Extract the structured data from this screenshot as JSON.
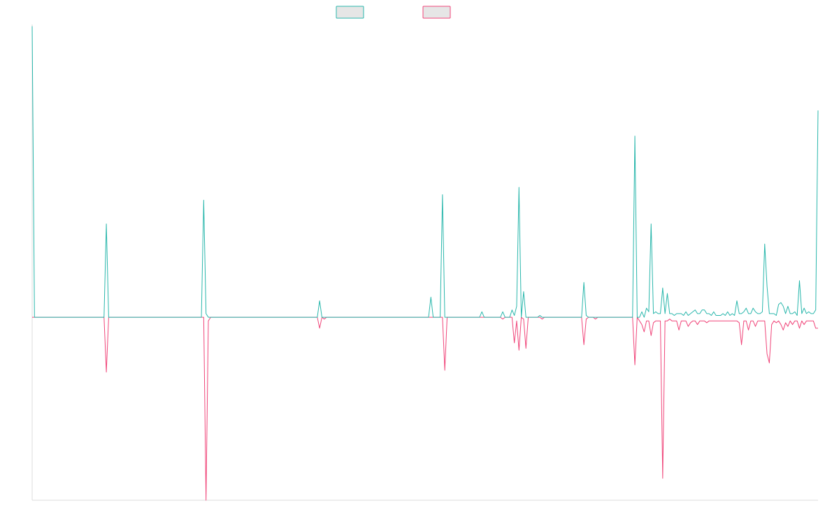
{
  "chart_data": {
    "type": "line",
    "title": "",
    "xlabel": "",
    "ylabel": "",
    "ylim": [
      -1.0,
      1.6
    ],
    "grid": false,
    "legend_position": "top",
    "colors": {
      "series1": "#2ab7ac",
      "series2": "#f0467a",
      "legend_fill": "#e6e6e6",
      "axis": "#dddddd"
    },
    "series": [
      {
        "name": "",
        "values": [
          1.59,
          0,
          0,
          0,
          0,
          0,
          0,
          0,
          0,
          0,
          0,
          0,
          0,
          0,
          0,
          0,
          0,
          0,
          0,
          0,
          0,
          0,
          0,
          0,
          0,
          0,
          0,
          0,
          0,
          0,
          0,
          0,
          0.51,
          0,
          0,
          0,
          0,
          0,
          0,
          0,
          0,
          0,
          0,
          0,
          0,
          0,
          0,
          0,
          0,
          0,
          0,
          0,
          0,
          0,
          0,
          0,
          0,
          0,
          0,
          0,
          0,
          0,
          0,
          0,
          0,
          0,
          0,
          0,
          0,
          0,
          0,
          0,
          0,
          0,
          0.64,
          0.02,
          0,
          0,
          0,
          0,
          0,
          0,
          0,
          0,
          0,
          0,
          0,
          0,
          0,
          0,
          0,
          0,
          0,
          0,
          0,
          0,
          0,
          0,
          0,
          0,
          0,
          0,
          0,
          0,
          0,
          0,
          0,
          0,
          0,
          0,
          0,
          0,
          0,
          0,
          0,
          0,
          0,
          0,
          0,
          0,
          0,
          0,
          0,
          0,
          0.09,
          0,
          0,
          0,
          0,
          0,
          0,
          0,
          0,
          0,
          0,
          0,
          0,
          0,
          0,
          0,
          0,
          0,
          0,
          0,
          0,
          0,
          0,
          0,
          0,
          0,
          0,
          0,
          0,
          0,
          0,
          0,
          0,
          0,
          0,
          0,
          0,
          0,
          0,
          0,
          0,
          0,
          0,
          0,
          0,
          0,
          0,
          0,
          0.11,
          0,
          0,
          0,
          0,
          0.67,
          0,
          0,
          0,
          0,
          0,
          0,
          0,
          0,
          0,
          0,
          0,
          0,
          0,
          0,
          0,
          0,
          0.03,
          0,
          0,
          0,
          0,
          0,
          0,
          0,
          0,
          0.03,
          0,
          0,
          0,
          0.04,
          0.01,
          0.06,
          0.71,
          0,
          0.14,
          0,
          0,
          0,
          0,
          0,
          0,
          0.01,
          0,
          0,
          0,
          0,
          0,
          0,
          0,
          0,
          0,
          0,
          0,
          0,
          0,
          0,
          0,
          0,
          0,
          0,
          0.19,
          0.01,
          0,
          0,
          0,
          0,
          0,
          0,
          0,
          0,
          0,
          0,
          0,
          0,
          0,
          0,
          0,
          0,
          0,
          0,
          0,
          0,
          0.99,
          0,
          0,
          0.03,
          0,
          0.05,
          0.03,
          0.51,
          0.02,
          0.03,
          0.02,
          0.02,
          0.16,
          0.02,
          0.13,
          0.02,
          0.02,
          0.01,
          0.02,
          0.02,
          0.02,
          0.01,
          0.03,
          0.01,
          0.02,
          0.03,
          0.04,
          0.02,
          0.02,
          0.04,
          0.04,
          0.02,
          0.02,
          0.01,
          0.03,
          0.01,
          0.01,
          0.01,
          0.02,
          0.01,
          0.03,
          0.01,
          0.02,
          0.01,
          0.09,
          0.02,
          0.02,
          0.03,
          0.05,
          0.02,
          0.02,
          0.05,
          0.03,
          0.02,
          0.02,
          0.03,
          0.4,
          0.17,
          0.02,
          0.02,
          0.02,
          0.01,
          0.07,
          0.08,
          0.06,
          0.02,
          0.06,
          0.02,
          0.02,
          0.03,
          0.01,
          0.2,
          0.02,
          0.05,
          0.02,
          0.03,
          0.02,
          0.02,
          0.04,
          1.13
        ]
      },
      {
        "name": "",
        "values": [
          0,
          0,
          0,
          0,
          0,
          0,
          0,
          0,
          0,
          0,
          0,
          0,
          0,
          0,
          0,
          0,
          0,
          0,
          0,
          0,
          0,
          0,
          0,
          0,
          0,
          0,
          0,
          0,
          0,
          0,
          0,
          0,
          -0.3,
          0,
          0,
          0,
          0,
          0,
          0,
          0,
          0,
          0,
          0,
          0,
          0,
          0,
          0,
          0,
          0,
          0,
          0,
          0,
          0,
          0,
          0,
          0,
          0,
          0,
          0,
          0,
          0,
          0,
          0,
          0,
          0,
          0,
          0,
          0,
          0,
          0,
          0,
          0,
          0,
          0,
          0,
          -1.0,
          -0.02,
          0,
          0,
          0,
          0,
          0,
          0,
          0,
          0,
          0,
          0,
          0,
          0,
          0,
          0,
          0,
          0,
          0,
          0,
          0,
          0,
          0,
          0,
          0,
          0,
          0,
          0,
          0,
          0,
          0,
          0,
          0,
          0,
          0,
          0,
          0,
          0,
          0,
          0,
          0,
          0,
          0,
          0,
          0,
          0,
          0,
          0,
          0,
          -0.06,
          0,
          -0.01,
          0,
          0,
          0,
          0,
          0,
          0,
          0,
          0,
          0,
          0,
          0,
          0,
          0,
          0,
          0,
          0,
          0,
          0,
          0,
          0,
          0,
          0,
          0,
          0,
          0,
          0,
          0,
          0,
          0,
          0,
          0,
          0,
          0,
          0,
          0,
          0,
          0,
          0,
          0,
          0,
          0,
          0,
          0,
          0,
          0,
          0,
          0,
          0,
          0,
          0,
          0,
          -0.29,
          0,
          0,
          0,
          0,
          0,
          0,
          0,
          0,
          0,
          0,
          0,
          0,
          0,
          0,
          0,
          0,
          0,
          0,
          0,
          0,
          0,
          0,
          0,
          0,
          -0.01,
          0,
          0,
          0,
          0,
          -0.14,
          -0.02,
          -0.18,
          0,
          -0.01,
          -0.17,
          0,
          0,
          0,
          0,
          0,
          0,
          -0.01,
          0,
          0,
          0,
          0,
          0,
          0,
          0,
          0,
          0,
          0,
          0,
          0,
          0,
          0,
          0,
          0,
          0,
          -0.15,
          -0.01,
          0,
          0,
          0,
          -0.01,
          0,
          0,
          0,
          0,
          0,
          0,
          0,
          0,
          0,
          0,
          0,
          0,
          0,
          0,
          0,
          0,
          -0.26,
          0,
          -0.02,
          -0.04,
          -0.08,
          -0.02,
          -0.02,
          -0.1,
          -0.03,
          -0.02,
          -0.02,
          -0.02,
          -0.88,
          -0.02,
          -0.02,
          -0.01,
          -0.02,
          -0.02,
          -0.02,
          -0.07,
          -0.02,
          -0.02,
          -0.02,
          -0.05,
          -0.03,
          -0.02,
          -0.02,
          -0.04,
          -0.02,
          -0.02,
          -0.02,
          -0.03,
          -0.02,
          -0.02,
          -0.02,
          -0.02,
          -0.02,
          -0.02,
          -0.02,
          -0.02,
          -0.02,
          -0.02,
          -0.02,
          -0.02,
          -0.02,
          -0.03,
          -0.15,
          -0.02,
          -0.02,
          -0.07,
          -0.02,
          -0.02,
          -0.05,
          -0.02,
          -0.02,
          -0.02,
          -0.02,
          -0.2,
          -0.25,
          -0.04,
          -0.02,
          -0.03,
          -0.02,
          -0.04,
          -0.07,
          -0.03,
          -0.05,
          -0.02,
          -0.04,
          -0.02,
          -0.02,
          -0.06,
          -0.02,
          -0.04,
          -0.02,
          -0.02,
          -0.02,
          -0.02,
          -0.06,
          -0.06
        ]
      }
    ]
  }
}
